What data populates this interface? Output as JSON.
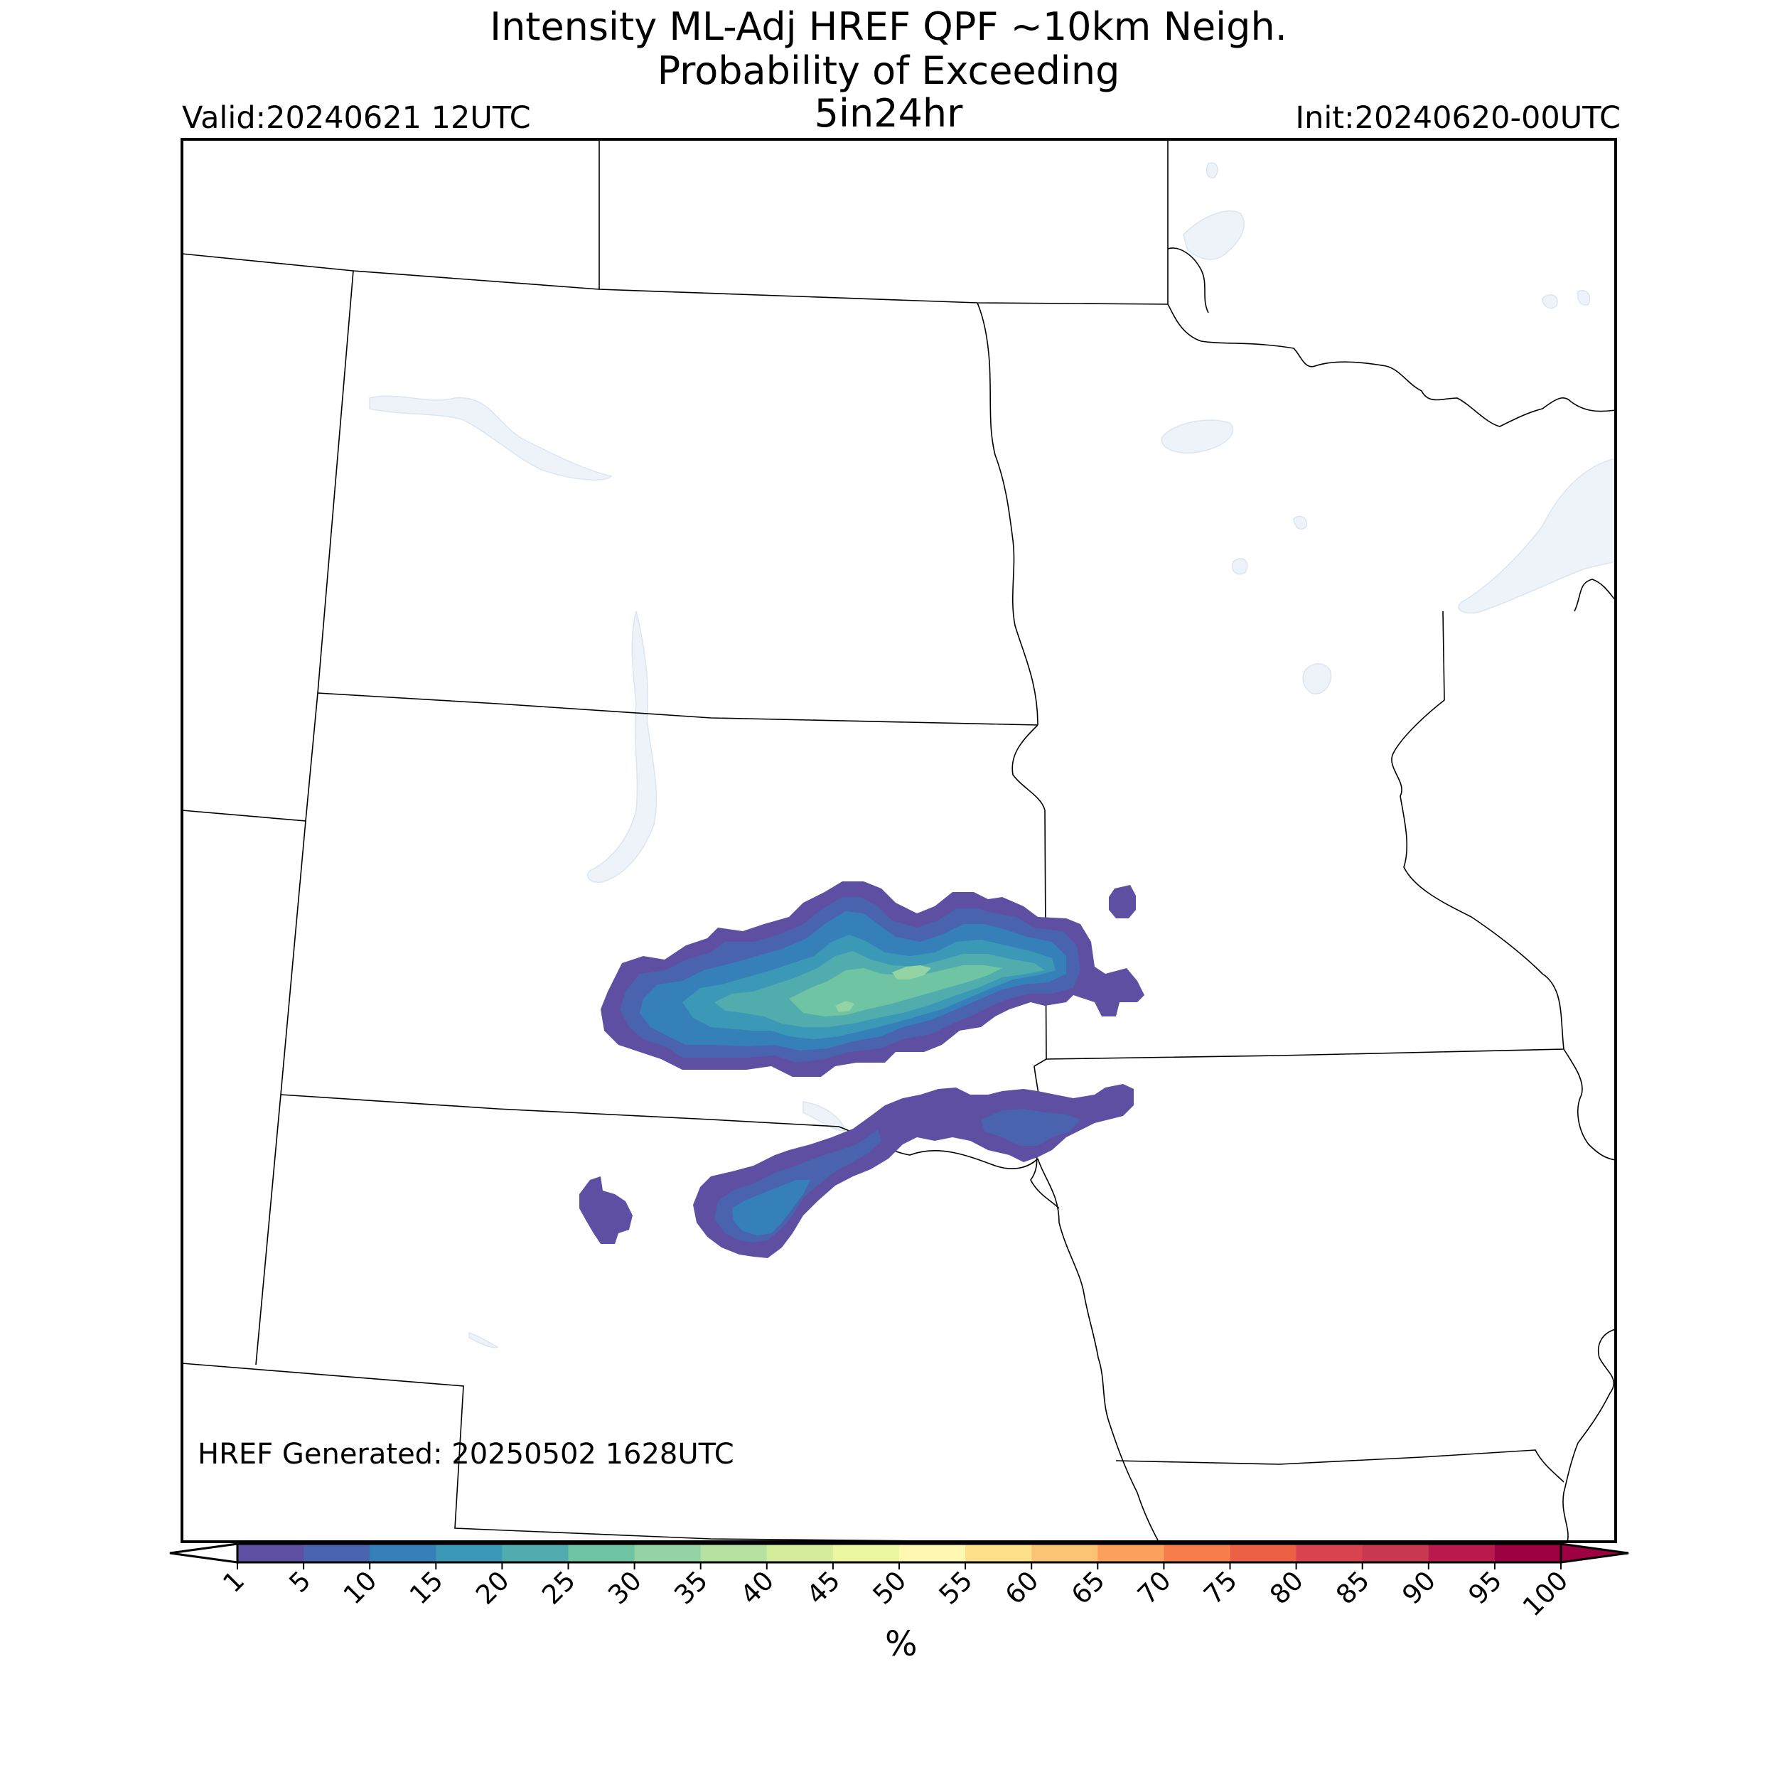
{
  "header": {
    "title_line1": "Intensity ML-Adj HREF QPF ~10km Neigh.",
    "title_line2": "Probability of Exceeding",
    "threshold": "5in24hr",
    "valid": "Valid:20240621 12UTC",
    "init": "Init:20240620-00UTC"
  },
  "footer": {
    "generated": "HREF Generated: 20250502 1628UTC"
  },
  "colorbar": {
    "unit_label": "%",
    "ticks": [
      "1",
      "5",
      "10",
      "15",
      "20",
      "25",
      "30",
      "35",
      "40",
      "45",
      "50",
      "55",
      "60",
      "65",
      "70",
      "75",
      "80",
      "85",
      "90",
      "95",
      "100"
    ],
    "colors": [
      "#5e4fa2",
      "#4a63ae",
      "#3680b9",
      "#3c98b7",
      "#51adad",
      "#6fc4a4",
      "#93d3a4",
      "#b5e1a1",
      "#d4ed9d",
      "#ecf7a0",
      "#fef8b3",
      "#fee08b",
      "#fdc374",
      "#fca15b",
      "#f67e4b",
      "#ec6145",
      "#d9434f",
      "#c93851",
      "#b71a4b",
      "#9e0142"
    ],
    "extend": "both"
  },
  "map": {
    "region": "Northern Plains / Upper Midwest",
    "probability_areas": [
      {
        "name": "northern band",
        "max_percent_range": "30-35"
      },
      {
        "name": "southern band",
        "max_percent_range": "10-15"
      }
    ]
  }
}
